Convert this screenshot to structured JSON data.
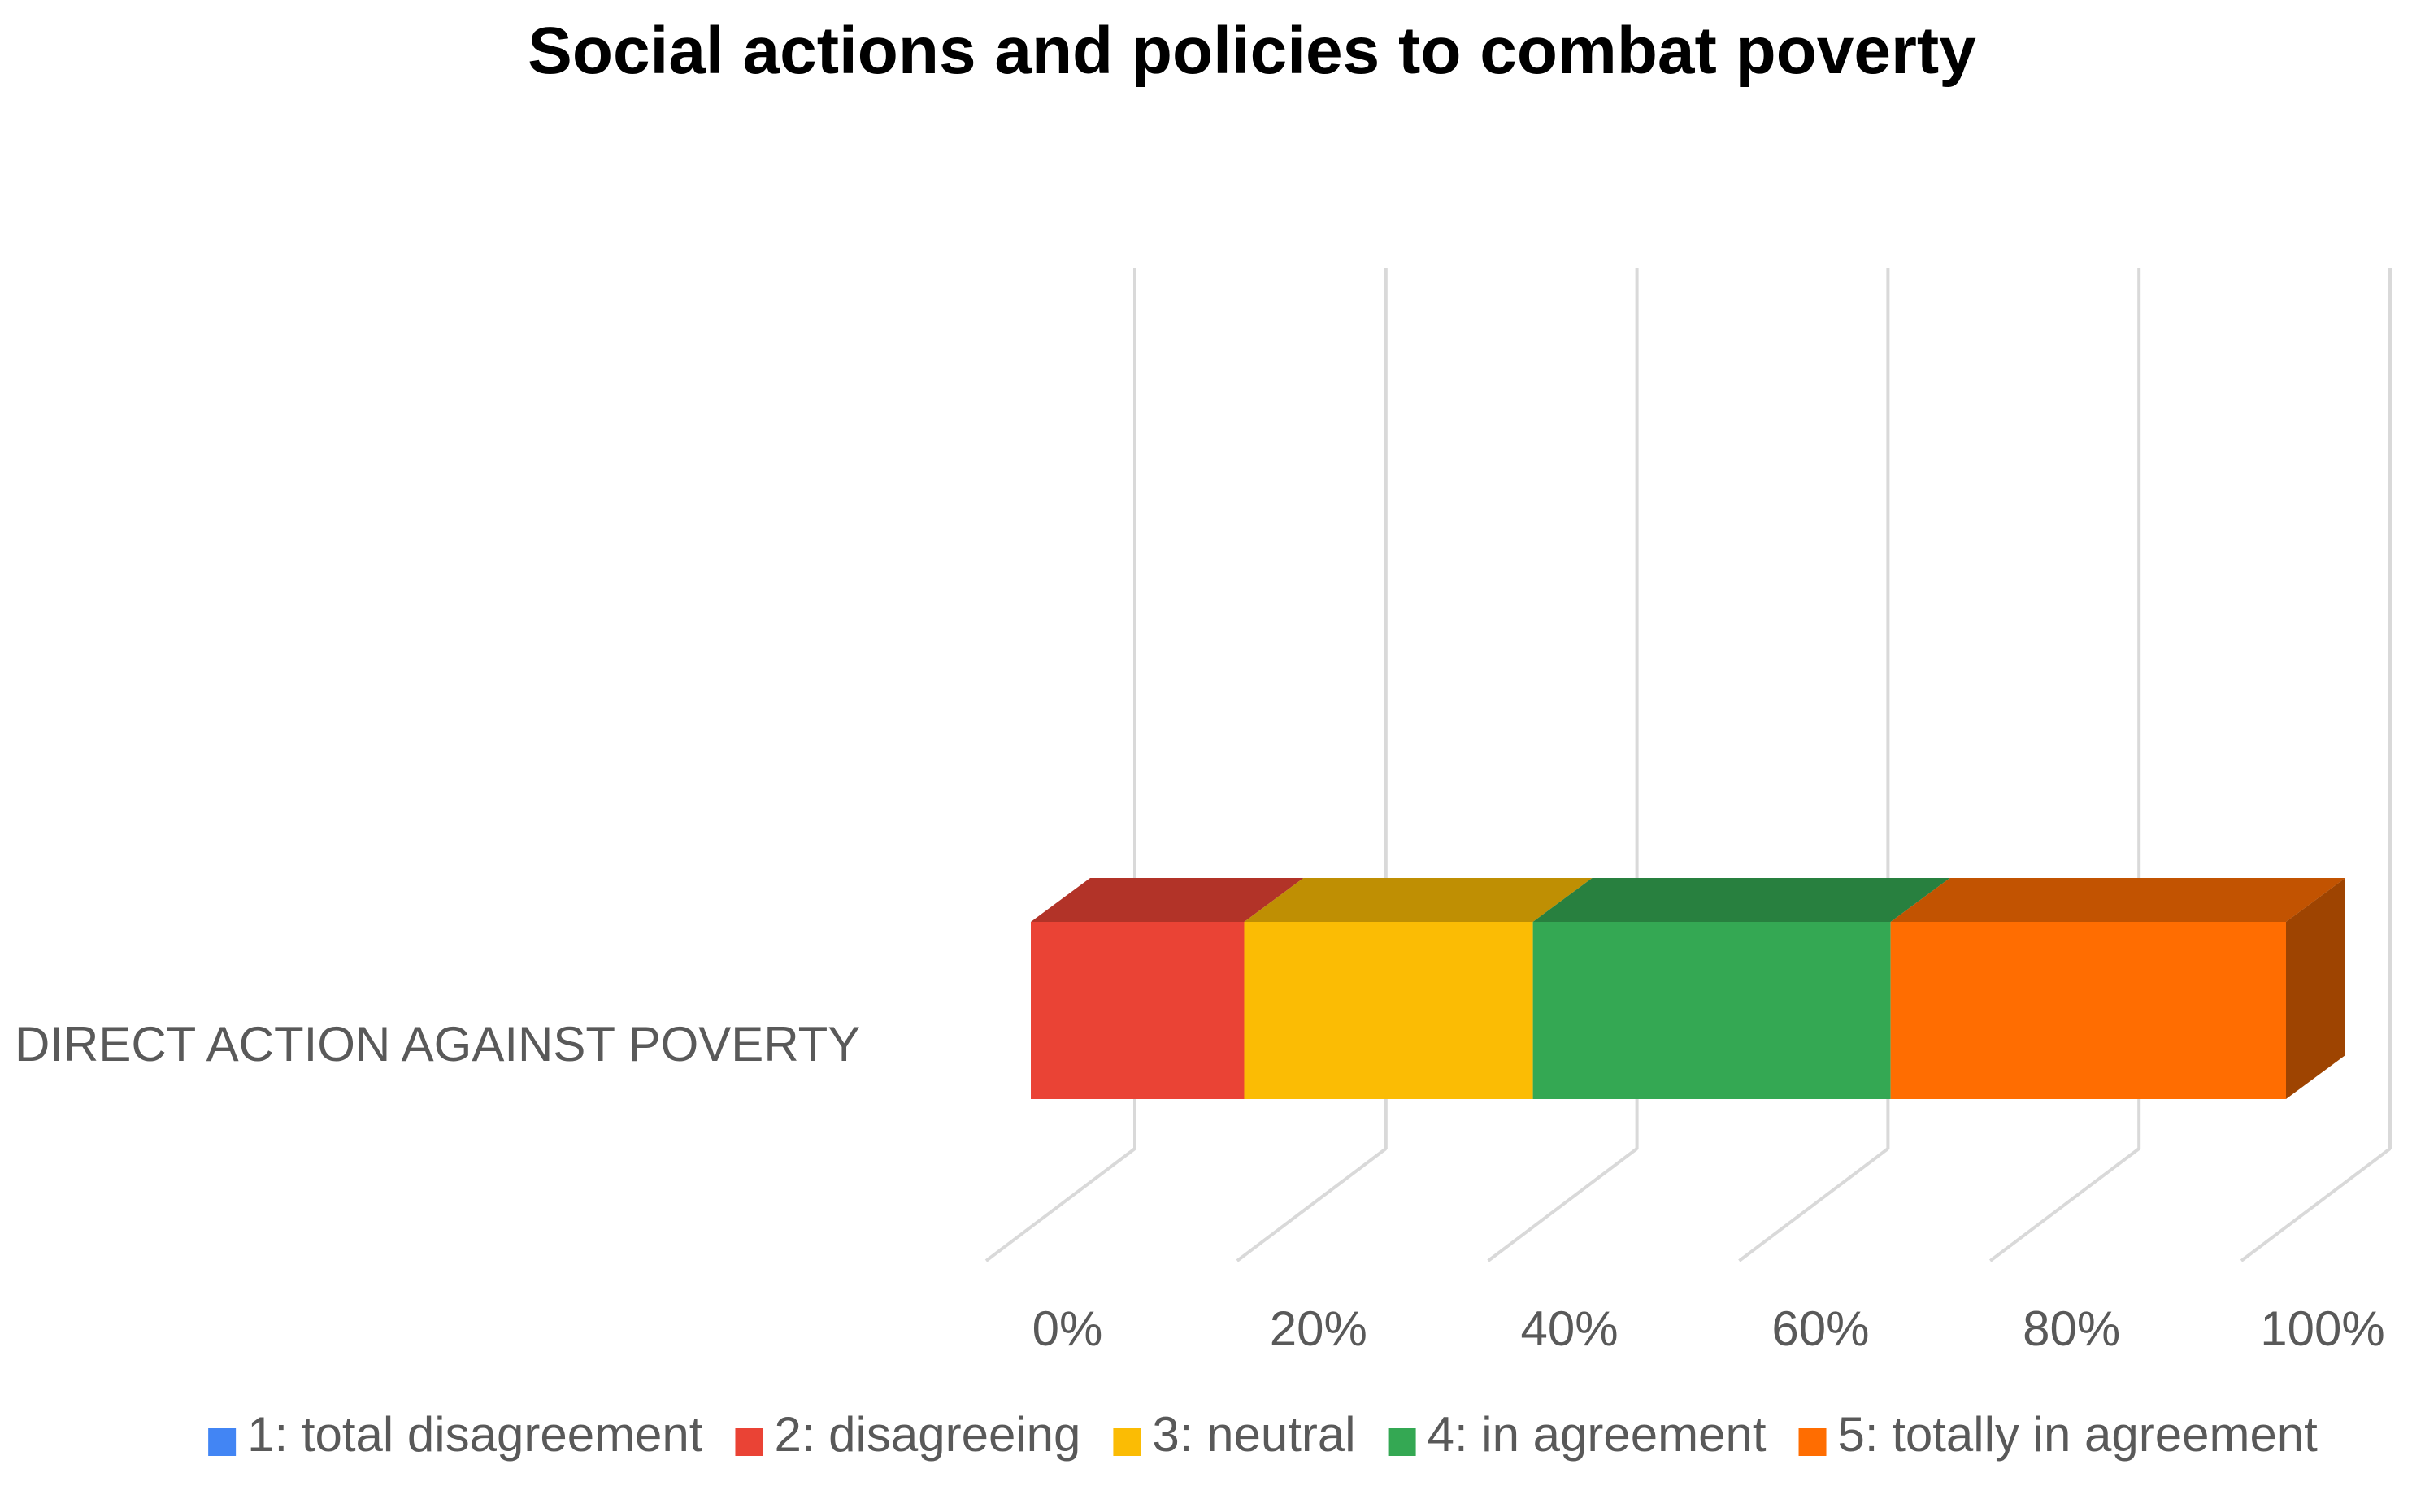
{
  "chart_data": {
    "type": "bar",
    "orientation": "horizontal",
    "stacked": "100%",
    "style": "3d",
    "title": "Social actions and policies to combat poverty",
    "categories": [
      "DIRECT ACTION AGAINST POVERTY"
    ],
    "xlabel": "",
    "ylabel": "",
    "xlim": [
      0,
      100
    ],
    "x_ticks": [
      "0%",
      "20%",
      "40%",
      "60%",
      "80%",
      "100%"
    ],
    "grid": true,
    "legend_position": "bottom",
    "series": [
      {
        "name": "1: total disagreement",
        "color": "#4285f4",
        "values": [
          0
        ]
      },
      {
        "name": "2: disagreeing",
        "color": "#ea4335",
        "values": [
          17
        ]
      },
      {
        "name": "3: neutral",
        "color": "#fbbc04",
        "values": [
          23
        ]
      },
      {
        "name": "4: in agreement",
        "color": "#34a853",
        "values": [
          28.5
        ]
      },
      {
        "name": "5: totally in agreement",
        "color": "#ff6d01",
        "values": [
          31.5
        ]
      }
    ]
  }
}
